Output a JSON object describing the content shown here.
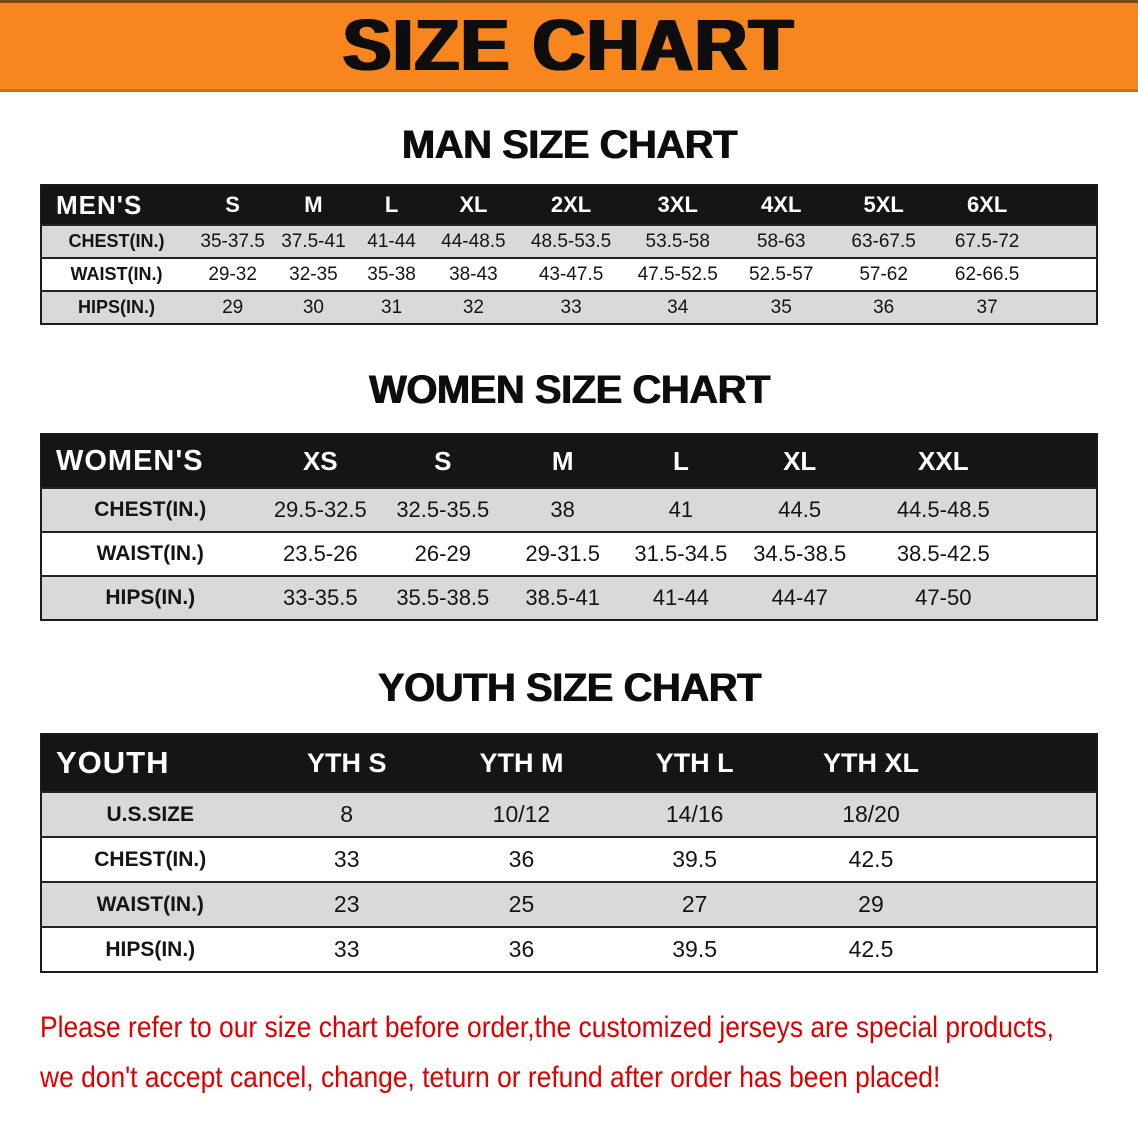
{
  "banner": {
    "title": "SIZE CHART"
  },
  "chart_data": [
    {
      "type": "table",
      "title": "MAN SIZE CHART",
      "header_label": "MEN'S",
      "columns": [
        "S",
        "M",
        "L",
        "XL",
        "2XL",
        "3XL",
        "4XL",
        "5XL",
        "6XL"
      ],
      "rows": [
        {
          "label": "CHEST(IN.)",
          "values": [
            "35-37.5",
            "37.5-41",
            "41-44",
            "44-48.5",
            "48.5-53.5",
            "53.5-58",
            "58-63",
            "63-67.5",
            "67.5-72"
          ]
        },
        {
          "label": "WAIST(IN.)",
          "values": [
            "29-32",
            "32-35",
            "35-38",
            "38-43",
            "43-47.5",
            "47.5-52.5",
            "52.5-57",
            "57-62",
            "62-66.5"
          ]
        },
        {
          "label": "HIPS(IN.)",
          "values": [
            "29",
            "30",
            "31",
            "32",
            "33",
            "34",
            "35",
            "36",
            "37"
          ]
        }
      ]
    },
    {
      "type": "table",
      "title": "WOMEN SIZE CHART",
      "header_label": "WOMEN'S",
      "columns": [
        "XS",
        "S",
        "M",
        "L",
        "XL",
        "XXL"
      ],
      "rows": [
        {
          "label": "CHEST(IN.)",
          "values": [
            "29.5-32.5",
            "32.5-35.5",
            "38",
            "41",
            "44.5",
            "44.5-48.5"
          ]
        },
        {
          "label": "WAIST(IN.)",
          "values": [
            "23.5-26",
            "26-29",
            "29-31.5",
            "31.5-34.5",
            "34.5-38.5",
            "38.5-42.5"
          ]
        },
        {
          "label": "HIPS(IN.)",
          "values": [
            "33-35.5",
            "35.5-38.5",
            "38.5-41",
            "41-44",
            "44-47",
            "47-50"
          ]
        }
      ]
    },
    {
      "type": "table",
      "title": "YOUTH SIZE CHART",
      "header_label": "YOUTH",
      "columns": [
        "YTH S",
        "YTH M",
        "YTH L",
        "YTH XL"
      ],
      "rows": [
        {
          "label": "U.S.SIZE",
          "values": [
            "8",
            "10/12",
            "14/16",
            "18/20"
          ]
        },
        {
          "label": "CHEST(IN.)",
          "values": [
            "33",
            "36",
            "39.5",
            "42.5"
          ]
        },
        {
          "label": "WAIST(IN.)",
          "values": [
            "23",
            "25",
            "27",
            "29"
          ]
        },
        {
          "label": "HIPS(IN.)",
          "values": [
            "33",
            "36",
            "39.5",
            "42.5"
          ]
        }
      ]
    }
  ],
  "footer": {
    "line1": "Please refer to our size chart before order,the customized jerseys are special products,",
    "line2": "we don't accept cancel, change, teturn or refund after order has been placed!"
  },
  "colors": {
    "banner_bg": "#F6861D",
    "table_header_bg": "#151515",
    "row_shade": "#D9D9D9",
    "footer_text": "#DC0000"
  }
}
